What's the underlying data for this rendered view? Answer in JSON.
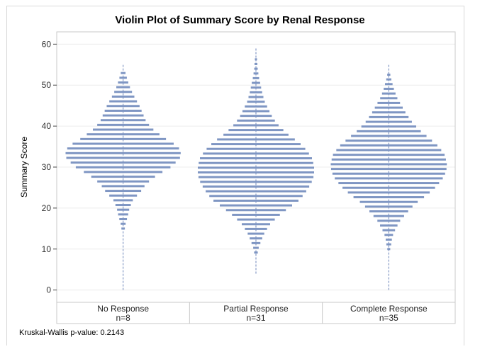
{
  "chart_data": {
    "type": "violin",
    "title": "Violin Plot of Summary Score by Renal Response",
    "xlabel": "",
    "ylabel": "Summary Score",
    "ylim": [
      -3,
      63
    ],
    "yticks": [
      0,
      10,
      20,
      30,
      40,
      50,
      60
    ],
    "grid": "horizontal",
    "color": "#7f96c3",
    "whisker_color": "#6c85b9",
    "groups": [
      {
        "name": "No Response",
        "n_label": "n=8",
        "whisker": [
          0,
          55
        ],
        "violin_range": [
          15,
          54
        ],
        "density": [
          [
            14,
            0.02
          ],
          [
            16,
            0.04
          ],
          [
            18,
            0.08
          ],
          [
            20,
            0.11
          ],
          [
            22,
            0.17
          ],
          [
            24,
            0.3
          ],
          [
            26,
            0.4
          ],
          [
            28,
            0.58
          ],
          [
            30,
            0.82
          ],
          [
            32,
            0.97
          ],
          [
            33,
            1.0
          ],
          [
            35,
            0.95
          ],
          [
            37,
            0.72
          ],
          [
            39,
            0.53
          ],
          [
            41,
            0.4
          ],
          [
            43,
            0.34
          ],
          [
            45,
            0.28
          ],
          [
            47,
            0.2
          ],
          [
            49,
            0.13
          ],
          [
            51,
            0.08
          ],
          [
            53,
            0.04
          ],
          [
            54,
            0.02
          ]
        ]
      },
      {
        "name": "Partial Response",
        "n_label": "n=31",
        "whisker": [
          4,
          59
        ],
        "violin_range": [
          8,
          58
        ],
        "density": [
          [
            8,
            0.02
          ],
          [
            10,
            0.04
          ],
          [
            12,
            0.09
          ],
          [
            14,
            0.15
          ],
          [
            16,
            0.24
          ],
          [
            18,
            0.38
          ],
          [
            20,
            0.56
          ],
          [
            22,
            0.75
          ],
          [
            24,
            0.86
          ],
          [
            26,
            0.95
          ],
          [
            28,
            1.0
          ],
          [
            30,
            1.0
          ],
          [
            32,
            0.97
          ],
          [
            34,
            0.88
          ],
          [
            36,
            0.74
          ],
          [
            38,
            0.55
          ],
          [
            40,
            0.4
          ],
          [
            42,
            0.29
          ],
          [
            44,
            0.22
          ],
          [
            46,
            0.15
          ],
          [
            48,
            0.11
          ],
          [
            50,
            0.08
          ],
          [
            52,
            0.05
          ],
          [
            54,
            0.03
          ],
          [
            56,
            0.02
          ],
          [
            58,
            0.01
          ]
        ]
      },
      {
        "name": "Complete Response",
        "n_label": "n=35",
        "whisker": [
          0,
          55
        ],
        "violin_range": [
          10,
          54
        ],
        "density": [
          [
            9,
            0.01
          ],
          [
            11,
            0.04
          ],
          [
            13,
            0.06
          ],
          [
            15,
            0.12
          ],
          [
            17,
            0.2
          ],
          [
            19,
            0.32
          ],
          [
            21,
            0.45
          ],
          [
            23,
            0.64
          ],
          [
            25,
            0.8
          ],
          [
            27,
            0.92
          ],
          [
            29,
            0.99
          ],
          [
            31,
            1.0
          ],
          [
            33,
            0.96
          ],
          [
            35,
            0.86
          ],
          [
            37,
            0.7
          ],
          [
            39,
            0.53
          ],
          [
            41,
            0.4
          ],
          [
            43,
            0.3
          ],
          [
            45,
            0.22
          ],
          [
            47,
            0.14
          ],
          [
            49,
            0.09
          ],
          [
            51,
            0.05
          ],
          [
            53,
            0.02
          ],
          [
            54,
            0.01
          ]
        ]
      }
    ]
  },
  "footnote": "Kruskal-Wallis p-value: 0.2143"
}
